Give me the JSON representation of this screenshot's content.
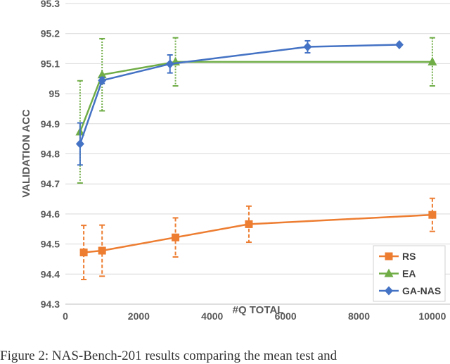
{
  "chart_data": {
    "type": "line",
    "title": "",
    "xlabel": "#Q TOTAL",
    "ylabel": "VALIDATION ACC",
    "xlim": [
      0,
      10500
    ],
    "ylim": [
      94.3,
      95.3
    ],
    "xticks": [
      "0",
      "2000",
      "4000",
      "6000",
      "8000",
      "10000"
    ],
    "yticks": [
      "94.3",
      "94.4",
      "94.5",
      "94.6",
      "94.7",
      "94.8",
      "94.9",
      "95",
      "95.1",
      "95.2",
      "95.3"
    ],
    "grid": "horizontal",
    "legend_position": "bottom-right",
    "series": [
      {
        "name": "RS",
        "color": "#ED7D31",
        "marker": "square",
        "error_style": "dashed",
        "points": [
          {
            "x": 500,
            "y": 94.472,
            "err": 0.09
          },
          {
            "x": 1000,
            "y": 94.478,
            "err": 0.085
          },
          {
            "x": 3000,
            "y": 94.522,
            "err": 0.065
          },
          {
            "x": 5000,
            "y": 94.566,
            "err": 0.06
          },
          {
            "x": 10000,
            "y": 94.597,
            "err": 0.055
          }
        ]
      },
      {
        "name": "EA",
        "color": "#70AD47",
        "marker": "triangle",
        "error_style": "dotted",
        "points": [
          {
            "x": 400,
            "y": 94.873,
            "err": 0.17
          },
          {
            "x": 1000,
            "y": 95.063,
            "err": 0.12
          },
          {
            "x": 3000,
            "y": 95.106,
            "err": 0.08
          },
          {
            "x": 10000,
            "y": 95.106,
            "err": 0.08
          }
        ]
      },
      {
        "name": "GA-NAS",
        "color": "#4472C4",
        "marker": "diamond",
        "error_style": "solid",
        "points": [
          {
            "x": 400,
            "y": 94.833,
            "err": 0.07
          },
          {
            "x": 1000,
            "y": 95.044,
            "err": 0.01
          },
          {
            "x": 2850,
            "y": 95.099,
            "err": 0.03
          },
          {
            "x": 6600,
            "y": 95.156,
            "err": 0.02
          },
          {
            "x": 9100,
            "y": 95.163,
            "err": 0
          }
        ]
      }
    ]
  },
  "caption": "Figure 2:  NAS-Bench-201 results comparing the mean test and"
}
